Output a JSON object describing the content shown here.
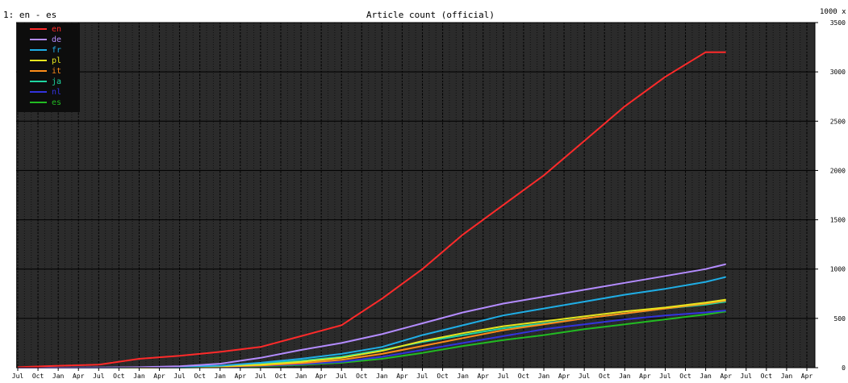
{
  "header": {
    "panel_label": "1: en - es",
    "title": "Article count (official)",
    "unit": "1000 x"
  },
  "colors": {
    "plot_background": "#2b2b2b",
    "grid_major": "#000000",
    "grid_minor": "#111111",
    "legend_background": "#0d0d0d"
  },
  "chart_data": {
    "type": "line",
    "title": "Article count (official)",
    "ylabel": "1000 x",
    "ylim": [
      0,
      3500
    ],
    "y_ticks": [
      {
        "value": 0,
        "label": "0"
      },
      {
        "value": 500,
        "label": "500"
      },
      {
        "value": 1000,
        "label": "1000"
      },
      {
        "value": 1500,
        "label": "1500"
      },
      {
        "value": 2000,
        "label": "2000"
      },
      {
        "value": 2500,
        "label": "2500"
      },
      {
        "value": 3000,
        "label": "3000"
      },
      {
        "value": 3500,
        "label": "3500"
      }
    ],
    "x_tick_labels": [
      "Jul",
      "Oct",
      "Jan",
      "Apr",
      "Jul",
      "Oct",
      "Jan",
      "Apr",
      "Jul",
      "Oct",
      "Jan",
      "Apr",
      "Jul",
      "Oct",
      "Jan",
      "Apr",
      "Jul",
      "Oct",
      "Jan",
      "Apr",
      "Jul",
      "Oct",
      "Jan",
      "Apr",
      "Jul",
      "Oct",
      "Jan",
      "Apr",
      "Jul",
      "Oct",
      "Jan",
      "Apr",
      "Jul",
      "Oct",
      "Jan",
      "Apr",
      "Jul",
      "Oct",
      "Jan",
      "Apr"
    ],
    "x": [
      "2001-07",
      "2002-01",
      "2002-07",
      "2003-01",
      "2003-07",
      "2004-01",
      "2004-07",
      "2005-01",
      "2005-07",
      "2006-01",
      "2006-07",
      "2007-01",
      "2007-07",
      "2008-01",
      "2008-07",
      "2009-01",
      "2009-07",
      "2010-01",
      "2010-04"
    ],
    "grid": true,
    "legend_position": "top-left",
    "series": [
      {
        "name": "en",
        "color": "#ff2a2a",
        "values": [
          5,
          20,
          30,
          90,
          120,
          160,
          210,
          320,
          430,
          700,
          1000,
          1350,
          1650,
          1950,
          2300,
          2650,
          2950,
          3200,
          3200
        ]
      },
      {
        "name": "de",
        "color": "#b48cff",
        "values": [
          0,
          0,
          2,
          5,
          15,
          40,
          100,
          180,
          250,
          340,
          450,
          560,
          650,
          720,
          790,
          860,
          930,
          1000,
          1050
        ]
      },
      {
        "name": "fr",
        "color": "#1faee6",
        "values": [
          0,
          0,
          1,
          3,
          10,
          20,
          50,
          90,
          140,
          210,
          330,
          430,
          530,
          600,
          670,
          740,
          800,
          870,
          920
        ]
      },
      {
        "name": "pl",
        "color": "#e6e61f",
        "values": [
          0,
          0,
          0,
          2,
          6,
          14,
          30,
          60,
          100,
          170,
          270,
          350,
          420,
          470,
          520,
          570,
          610,
          660,
          690
        ]
      },
      {
        "name": "it",
        "color": "#ff8c1a",
        "values": [
          0,
          0,
          0,
          1,
          4,
          10,
          22,
          45,
          80,
          140,
          220,
          300,
          380,
          440,
          500,
          550,
          600,
          650,
          680
        ]
      },
      {
        "name": "ja",
        "color": "#1fd6a0",
        "values": [
          0,
          0,
          0,
          1,
          5,
          15,
          40,
          70,
          110,
          180,
          260,
          330,
          400,
          450,
          500,
          550,
          600,
          640,
          670
        ]
      },
      {
        "name": "nl",
        "color": "#3333dd",
        "values": [
          0,
          0,
          0,
          1,
          3,
          8,
          18,
          35,
          60,
          110,
          180,
          250,
          320,
          390,
          440,
          490,
          530,
          560,
          580
        ]
      },
      {
        "name": "es",
        "color": "#22bb22",
        "values": [
          0,
          0,
          0,
          0,
          2,
          6,
          14,
          28,
          50,
          90,
          150,
          220,
          280,
          330,
          390,
          440,
          490,
          540,
          570
        ]
      }
    ]
  }
}
